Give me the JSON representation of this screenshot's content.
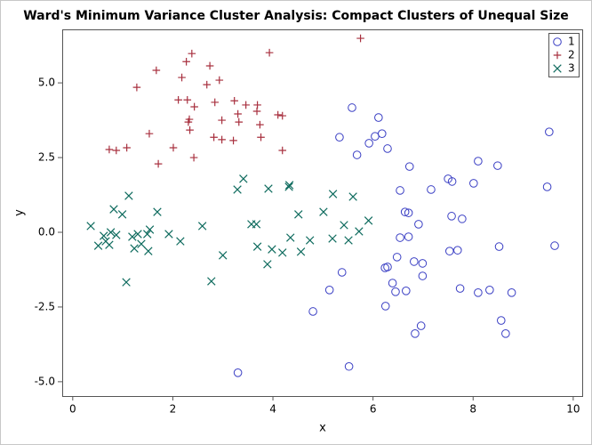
{
  "chart_data": {
    "type": "scatter",
    "title": "Ward's Minimum Variance Cluster Analysis: Compact Clusters of Unequal Size",
    "x_label": "x",
    "y_label": "y",
    "xlim": [
      -0.21,
      10.18
    ],
    "ylim": [
      -5.48,
      6.79
    ],
    "xticks": [
      0,
      2,
      4,
      6,
      8,
      10
    ],
    "yticks": [
      {
        "value": -5,
        "label": "-5.0"
      },
      {
        "value": -2.5,
        "label": "-2.5"
      },
      {
        "value": 0,
        "label": "0.0"
      },
      {
        "value": 2.5,
        "label": "2.5"
      },
      {
        "value": 5,
        "label": "5.0"
      }
    ],
    "legend_position": "top-right",
    "series": [
      {
        "name": "1",
        "marker": "circle",
        "color": "#3a3fc4",
        "x": [
          3.3,
          5.33,
          5.58,
          6.11,
          6.18,
          6.04,
          5.92,
          5.68,
          6.29,
          6.73,
          9.52,
          8.1,
          8.49,
          9.48,
          8.01,
          7.5,
          7.58,
          7.16,
          6.54,
          6.64,
          6.71,
          6.91,
          7.57,
          7.78,
          6.54,
          6.71,
          6.48,
          6.24,
          6.29,
          6.82,
          6.99,
          6.99,
          6.39,
          6.45,
          6.66,
          6.25,
          7.53,
          7.69,
          8.52,
          9.63,
          7.74,
          8.1,
          8.33,
          8.77,
          5.13,
          5.38,
          4.8,
          6.96,
          6.84,
          8.56,
          8.65,
          5.52
        ],
        "values": [
          -4.7,
          3.18,
          4.17,
          3.84,
          3.3,
          3.21,
          2.98,
          2.59,
          2.8,
          2.2,
          3.36,
          2.38,
          2.23,
          1.52,
          1.64,
          1.79,
          1.7,
          1.43,
          1.4,
          0.68,
          0.65,
          0.27,
          0.54,
          0.45,
          -0.18,
          -0.15,
          -0.83,
          -1.19,
          -1.16,
          -0.98,
          -1.04,
          -1.46,
          -1.7,
          -1.99,
          -1.96,
          -2.47,
          -0.63,
          -0.6,
          -0.48,
          -0.45,
          -1.88,
          -2.02,
          -1.93,
          -2.02,
          -1.93,
          -1.34,
          -2.65,
          -3.13,
          -3.39,
          -2.95,
          -3.39,
          -4.49
        ]
      },
      {
        "name": "2",
        "marker": "plus",
        "color": "#a8303f",
        "x": [
          5.75,
          2.38,
          2.27,
          3.93,
          1.67,
          2.74,
          2.18,
          2.93,
          2.68,
          1.28,
          2.11,
          2.29,
          2.43,
          2.84,
          3.23,
          3.46,
          3.69,
          3.68,
          4.1,
          4.19,
          3.3,
          2.33,
          2.31,
          2.98,
          3.32,
          3.74,
          2.34,
          1.53,
          2.82,
          2.98,
          3.21,
          3.76,
          2.01,
          1.08,
          0.73,
          0.87,
          4.19,
          2.42,
          1.71
        ],
        "values": [
          6.49,
          5.98,
          5.71,
          6.01,
          5.42,
          5.57,
          5.18,
          5.09,
          4.94,
          4.85,
          4.43,
          4.43,
          4.2,
          4.35,
          4.4,
          4.26,
          4.26,
          4.05,
          3.93,
          3.9,
          3.96,
          3.78,
          3.69,
          3.75,
          3.69,
          3.6,
          3.42,
          3.3,
          3.18,
          3.1,
          3.07,
          3.18,
          2.83,
          2.83,
          2.77,
          2.74,
          2.74,
          2.5,
          2.29
        ]
      },
      {
        "name": "3",
        "marker": "x",
        "color": "#0e6b5e",
        "x": [
          3.41,
          3.29,
          3.91,
          4.33,
          4.32,
          1.12,
          5.2,
          5.6,
          0.82,
          0.99,
          1.69,
          4.51,
          5.01,
          3.57,
          3.67,
          5.42,
          5.91,
          0.36,
          2.59,
          1.54,
          0.76,
          0.62,
          0.87,
          1.19,
          1.3,
          1.49,
          1.92,
          5.72,
          0.66,
          0.51,
          0.73,
          1.23,
          1.37,
          1.51,
          2.15,
          4.35,
          4.74,
          5.19,
          5.51,
          3.69,
          3.98,
          4.19,
          4.56,
          3.0,
          3.89,
          1.07,
          2.77
        ],
        "values": [
          1.79,
          1.43,
          1.46,
          1.58,
          1.52,
          1.22,
          1.28,
          1.19,
          0.77,
          0.6,
          0.68,
          0.6,
          0.68,
          0.27,
          0.27,
          0.24,
          0.39,
          0.21,
          0.21,
          0.09,
          0.0,
          -0.12,
          -0.09,
          -0.15,
          -0.06,
          -0.06,
          -0.06,
          0.03,
          -0.3,
          -0.45,
          -0.42,
          -0.54,
          -0.39,
          -0.63,
          -0.3,
          -0.18,
          -0.27,
          -0.21,
          -0.27,
          -0.48,
          -0.57,
          -0.68,
          -0.65,
          -0.77,
          -1.07,
          -1.67,
          -1.64
        ]
      }
    ]
  }
}
